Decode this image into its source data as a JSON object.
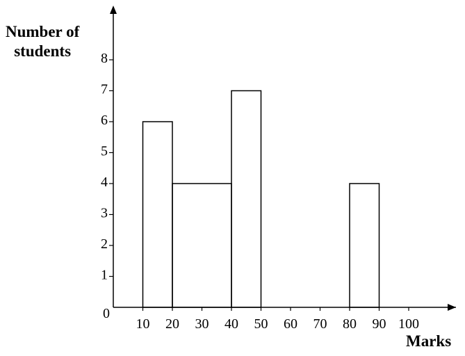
{
  "chart_data": {
    "type": "bar",
    "title": "",
    "ylabel_line1": "Number of",
    "ylabel_line2": "students",
    "xlabel": "Marks",
    "origin_label": "0",
    "xlim": [
      0,
      110
    ],
    "ylim": [
      0,
      8
    ],
    "x_ticks": [
      10,
      20,
      30,
      40,
      50,
      60,
      70,
      80,
      90,
      100
    ],
    "y_ticks": [
      1,
      2,
      3,
      4,
      5,
      6,
      7,
      8
    ],
    "bars": [
      {
        "from": 10,
        "to": 20,
        "value": 6
      },
      {
        "from": 20,
        "to": 40,
        "value": 4
      },
      {
        "from": 40,
        "to": 50,
        "value": 7
      },
      {
        "from": 80,
        "to": 90,
        "value": 4
      }
    ],
    "grid": false,
    "legend": "none"
  }
}
